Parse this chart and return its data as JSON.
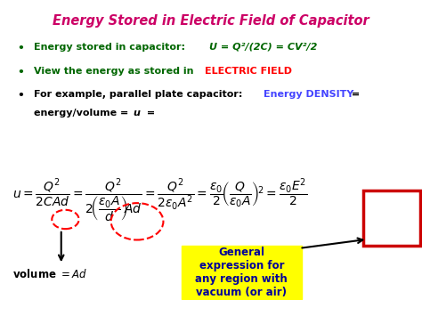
{
  "title": "Energy Stored in Electric Field of Capacitor",
  "title_color": "#CC0066",
  "bg_color": "#FFFFFF",
  "bullet1_black": "Energy stored in capacitor:  ",
  "bullet1_green": "U = Q²/(2C) = CV²/2",
  "bullet2_green": "View the energy as stored in ",
  "bullet2_red": "ELECTRIC FIELD",
  "bullet3_black": "For example, parallel plate capacitor: ",
  "bullet3_blue": "Energy DENSITY",
  "bullet3_end": " =",
  "bullet3b": "  energy/volume = ",
  "bullet3b_italic": "u",
  "bullet3b_end": " =",
  "box_color": "#FFFF00",
  "box_text": "General\nexpression for\nany region with\nvacuum (or air)",
  "box_text_color": "#000099",
  "red_box_color": "#CC0000",
  "figsize": [
    4.74,
    3.55
  ],
  "dpi": 100
}
